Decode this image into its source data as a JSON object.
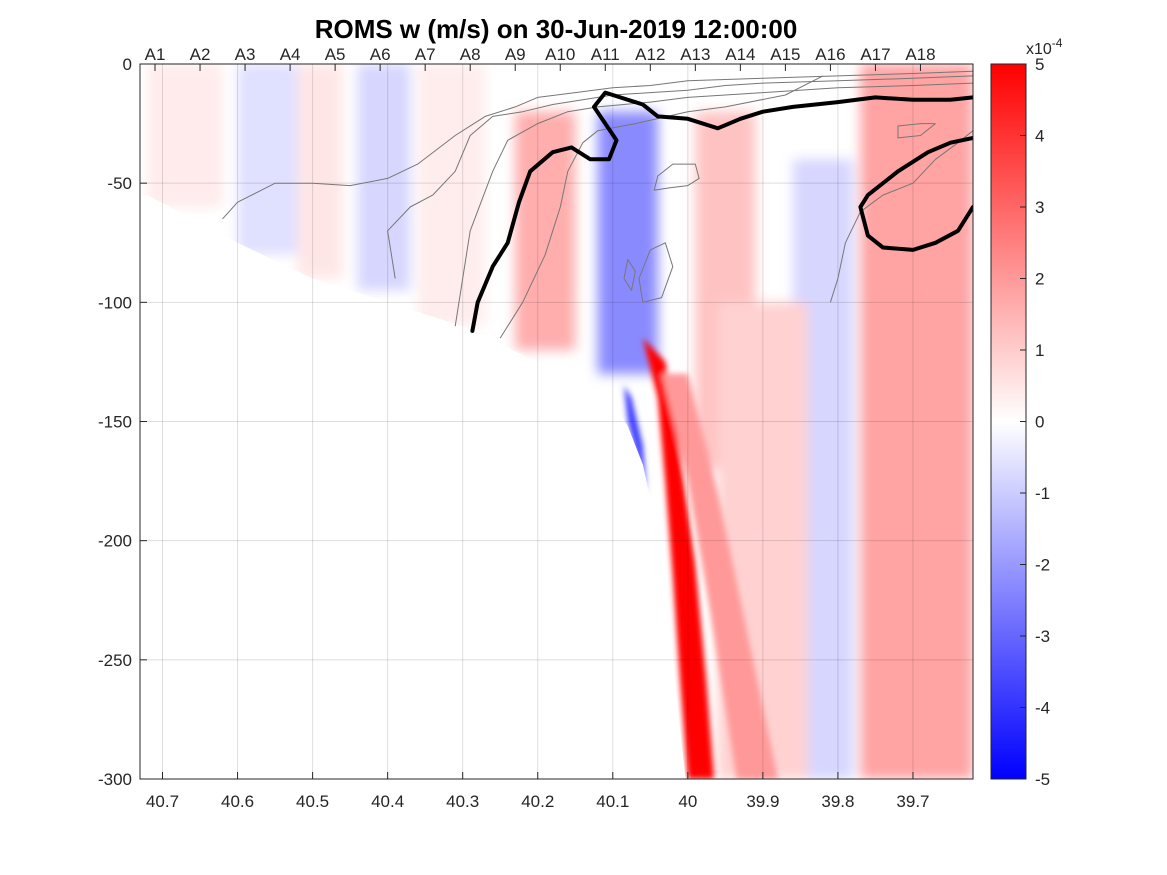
{
  "chart_data": {
    "type": "heatmap",
    "title": "ROMS w (m/s) on 30-Jun-2019 12:00:00",
    "xlabel": "",
    "ylabel": "",
    "x_reversed": true,
    "xlim": [
      40.73,
      39.62
    ],
    "ylim": [
      -300,
      0
    ],
    "grid": true,
    "x_ticks": [
      40.7,
      40.6,
      40.5,
      40.4,
      40.3,
      40.2,
      40.1,
      40,
      39.9,
      39.8,
      39.7
    ],
    "x_tick_labels": [
      "40.7",
      "40.6",
      "40.5",
      "40.4",
      "40.3",
      "40.2",
      "40.1",
      "40",
      "39.9",
      "39.8",
      "39.7"
    ],
    "y_ticks": [
      0,
      -50,
      -100,
      -150,
      -200,
      -250,
      -300
    ],
    "y_tick_labels": [
      "0",
      "-50",
      "-100",
      "-150",
      "-200",
      "-250",
      "-300"
    ],
    "stations": [
      {
        "name": "A1",
        "lat": 40.71
      },
      {
        "name": "A2",
        "lat": 40.65
      },
      {
        "name": "A3",
        "lat": 40.59
      },
      {
        "name": "A4",
        "lat": 40.53
      },
      {
        "name": "A5",
        "lat": 40.47
      },
      {
        "name": "A6",
        "lat": 40.41
      },
      {
        "name": "A7",
        "lat": 40.35
      },
      {
        "name": "A8",
        "lat": 40.29
      },
      {
        "name": "A9",
        "lat": 40.23
      },
      {
        "name": "A10",
        "lat": 40.17
      },
      {
        "name": "A11",
        "lat": 40.11
      },
      {
        "name": "A12",
        "lat": 40.05
      },
      {
        "name": "A13",
        "lat": 39.99
      },
      {
        "name": "A14",
        "lat": 39.93
      },
      {
        "name": "A15",
        "lat": 39.87
      },
      {
        "name": "A16",
        "lat": 39.81
      },
      {
        "name": "A17",
        "lat": 39.75
      },
      {
        "name": "A18",
        "lat": 39.69
      }
    ],
    "colorbar": {
      "range": [
        -5,
        5
      ],
      "ticks": [
        5,
        4,
        3,
        2,
        1,
        0,
        -1,
        -2,
        -3,
        -4,
        -5
      ],
      "tick_labels": [
        "5",
        "4",
        "3",
        "2",
        "1",
        "0",
        "-1",
        "-2",
        "-3",
        "-4",
        "-5"
      ],
      "exponent": "x10",
      "exponent_power": "-4",
      "colors": {
        "positive": "#ff0000",
        "zero": "#ffffff",
        "negative": "#0000ff"
      }
    },
    "bottom_boundary": [
      [
        40.72,
        -55
      ],
      [
        40.6,
        -75
      ],
      [
        40.5,
        -90
      ],
      [
        40.4,
        -100
      ],
      [
        40.3,
        -110
      ],
      [
        40.2,
        -125
      ],
      [
        40.14,
        -133
      ],
      [
        40.1,
        -142
      ],
      [
        40.08,
        -152
      ],
      [
        40.06,
        -168
      ],
      [
        40.045,
        -190
      ],
      [
        40.035,
        -215
      ],
      [
        40.02,
        -250
      ],
      [
        40.01,
        -280
      ],
      [
        40.003,
        -300
      ]
    ],
    "w_features": [
      {
        "kind": "column",
        "lat_from": 40.72,
        "lat_to": 40.62,
        "z_from": 0,
        "z_to": -60,
        "w": 0.4
      },
      {
        "kind": "column",
        "lat_from": 40.6,
        "lat_to": 40.52,
        "z_from": 0,
        "z_to": -80,
        "w": -0.6
      },
      {
        "kind": "column",
        "lat_from": 40.52,
        "lat_to": 40.46,
        "z_from": 0,
        "z_to": -90,
        "w": 0.5
      },
      {
        "kind": "column",
        "lat_from": 40.44,
        "lat_to": 40.37,
        "z_from": 0,
        "z_to": -95,
        "w": -0.8
      },
      {
        "kind": "column",
        "lat_from": 40.36,
        "lat_to": 40.27,
        "z_from": 0,
        "z_to": -110,
        "w": 0.35
      },
      {
        "kind": "column",
        "lat_from": 40.23,
        "lat_to": 40.15,
        "z_from": -20,
        "z_to": -120,
        "w": 1.6
      },
      {
        "kind": "column",
        "lat_from": 40.12,
        "lat_to": 40.04,
        "z_from": -20,
        "z_to": -130,
        "w": -2.3
      },
      {
        "kind": "column",
        "lat_from": 39.99,
        "lat_to": 39.91,
        "z_from": -20,
        "z_to": -170,
        "w": 1.2
      },
      {
        "kind": "column",
        "lat_from": 39.86,
        "lat_to": 39.78,
        "z_from": -40,
        "z_to": -300,
        "w": -0.8
      },
      {
        "kind": "column",
        "lat_from": 39.77,
        "lat_to": 39.62,
        "z_from": 0,
        "z_to": -300,
        "w": 1.8
      },
      {
        "kind": "column",
        "lat_from": 39.96,
        "lat_to": 39.84,
        "z_from": -100,
        "z_to": -300,
        "w": 0.9
      },
      {
        "kind": "slope_jet",
        "w": 5.0
      },
      {
        "kind": "slope_down",
        "w": -3.8
      }
    ],
    "thick_contours": [
      [
        [
          40.287,
          -112
        ],
        [
          40.28,
          -100
        ],
        [
          40.26,
          -85
        ],
        [
          40.24,
          -75
        ],
        [
          40.225,
          -58
        ],
        [
          40.21,
          -45
        ],
        [
          40.18,
          -37
        ],
        [
          40.155,
          -35
        ],
        [
          40.13,
          -40
        ],
        [
          40.105,
          -40
        ],
        [
          40.095,
          -32
        ],
        [
          40.11,
          -25
        ],
        [
          40.125,
          -18
        ],
        [
          40.11,
          -12
        ],
        [
          40.06,
          -17
        ],
        [
          40.04,
          -22
        ],
        [
          40.0,
          -23
        ],
        [
          39.96,
          -27
        ],
        [
          39.93,
          -23
        ],
        [
          39.9,
          -20
        ],
        [
          39.86,
          -18
        ],
        [
          39.8,
          -16
        ],
        [
          39.75,
          -14
        ],
        [
          39.7,
          -15
        ],
        [
          39.65,
          -15
        ],
        [
          39.62,
          -14
        ]
      ],
      [
        [
          39.62,
          -60
        ],
        [
          39.64,
          -70
        ],
        [
          39.67,
          -75
        ],
        [
          39.7,
          -78
        ],
        [
          39.74,
          -77
        ],
        [
          39.76,
          -72
        ],
        [
          39.77,
          -60
        ],
        [
          39.76,
          -55
        ],
        [
          39.72,
          -45
        ],
        [
          39.68,
          -37
        ],
        [
          39.65,
          -33
        ],
        [
          39.62,
          -31
        ]
      ]
    ],
    "thin_contours": [
      [
        [
          40.62,
          -65
        ],
        [
          40.6,
          -58
        ],
        [
          40.55,
          -50
        ],
        [
          40.5,
          -50
        ],
        [
          40.45,
          -51
        ],
        [
          40.4,
          -48
        ],
        [
          40.36,
          -42
        ],
        [
          40.31,
          -30
        ],
        [
          40.27,
          -22
        ],
        [
          40.23,
          -18
        ],
        [
          40.2,
          -14
        ],
        [
          40.15,
          -12
        ],
        [
          40.1,
          -10
        ],
        [
          40.05,
          -9
        ],
        [
          40.0,
          -7
        ],
        [
          39.9,
          -6
        ],
        [
          39.8,
          -5
        ],
        [
          39.7,
          -4
        ],
        [
          39.62,
          -3
        ]
      ],
      [
        [
          40.39,
          -90
        ],
        [
          40.4,
          -70
        ],
        [
          40.37,
          -60
        ],
        [
          40.34,
          -55
        ],
        [
          40.31,
          -45
        ],
        [
          40.29,
          -30
        ],
        [
          40.26,
          -22
        ],
        [
          40.22,
          -20
        ],
        [
          40.18,
          -17
        ],
        [
          40.14,
          -15
        ],
        [
          40.1,
          -13
        ],
        [
          40.05,
          -12
        ],
        [
          40.0,
          -11
        ],
        [
          39.95,
          -9
        ],
        [
          39.9,
          -8
        ],
        [
          39.8,
          -7
        ],
        [
          39.7,
          -6
        ],
        [
          39.62,
          -5
        ]
      ],
      [
        [
          40.31,
          -110
        ],
        [
          40.3,
          -90
        ],
        [
          40.29,
          -70
        ],
        [
          40.26,
          -45
        ],
        [
          40.24,
          -32
        ],
        [
          40.2,
          -25
        ],
        [
          40.16,
          -20
        ],
        [
          40.12,
          -18
        ],
        [
          40.05,
          -16
        ],
        [
          40.0,
          -14
        ],
        [
          39.9,
          -12
        ],
        [
          39.8,
          -10
        ],
        [
          39.7,
          -9
        ],
        [
          39.62,
          -8
        ]
      ],
      [
        [
          40.25,
          -115
        ],
        [
          40.22,
          -100
        ],
        [
          40.19,
          -80
        ],
        [
          40.17,
          -60
        ],
        [
          40.16,
          -45
        ],
        [
          40.14,
          -33
        ],
        [
          40.12,
          -28
        ],
        [
          40.07,
          -25
        ],
        [
          40.0,
          -20
        ],
        [
          39.95,
          -18
        ],
        [
          39.87,
          -13
        ],
        [
          39.82,
          -5
        ]
      ],
      [
        [
          40.045,
          -53
        ],
        [
          40.04,
          -47
        ],
        [
          40.02,
          -42
        ],
        [
          39.99,
          -42
        ],
        [
          39.985,
          -48
        ],
        [
          40.0,
          -51
        ],
        [
          40.025,
          -52
        ],
        [
          40.045,
          -53
        ]
      ],
      [
        [
          40.085,
          -90
        ],
        [
          40.08,
          -82
        ],
        [
          40.07,
          -87
        ],
        [
          40.075,
          -95
        ],
        [
          40.085,
          -90
        ]
      ],
      [
        [
          40.06,
          -100
        ],
        [
          40.035,
          -98
        ],
        [
          40.02,
          -85
        ],
        [
          40.03,
          -75
        ],
        [
          40.05,
          -78
        ],
        [
          40.065,
          -90
        ],
        [
          40.06,
          -100
        ]
      ],
      [
        [
          39.81,
          -100
        ],
        [
          39.8,
          -90
        ],
        [
          39.79,
          -75
        ],
        [
          39.77,
          -62
        ],
        [
          39.74,
          -55
        ],
        [
          39.7,
          -50
        ],
        [
          39.67,
          -40
        ],
        [
          39.64,
          -33
        ],
        [
          39.62,
          -28
        ]
      ],
      [
        [
          39.67,
          -25
        ],
        [
          39.69,
          -30
        ],
        [
          39.72,
          -31
        ],
        [
          39.72,
          -26
        ],
        [
          39.69,
          -25
        ],
        [
          39.67,
          -25
        ]
      ]
    ]
  }
}
